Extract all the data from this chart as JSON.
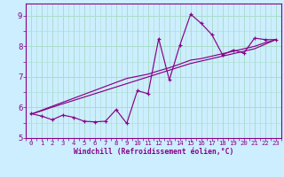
{
  "xlabel": "Windchill (Refroidissement éolien,°C)",
  "ylabel": "",
  "bg_color": "#cceeff",
  "line_color": "#880088",
  "grid_color": "#aaddcc",
  "xlim": [
    -0.5,
    23.5
  ],
  "ylim": [
    5.0,
    9.4
  ],
  "yticks": [
    5,
    6,
    7,
    8,
    9
  ],
  "xticks": [
    0,
    1,
    2,
    3,
    4,
    5,
    6,
    7,
    8,
    9,
    10,
    11,
    12,
    13,
    14,
    15,
    16,
    17,
    18,
    19,
    20,
    21,
    22,
    23
  ],
  "x_data": [
    0,
    1,
    2,
    3,
    4,
    5,
    6,
    7,
    8,
    9,
    10,
    11,
    12,
    13,
    14,
    15,
    16,
    17,
    18,
    19,
    20,
    21,
    22,
    23
  ],
  "y_main": [
    5.8,
    5.72,
    5.6,
    5.75,
    5.68,
    5.55,
    5.53,
    5.55,
    5.93,
    5.48,
    6.55,
    6.45,
    8.25,
    6.9,
    8.05,
    9.05,
    8.75,
    8.38,
    7.72,
    7.88,
    7.78,
    8.27,
    8.22,
    8.22
  ],
  "y_linear1": [
    5.78,
    5.89,
    6.01,
    6.12,
    6.23,
    6.34,
    6.45,
    6.56,
    6.67,
    6.78,
    6.89,
    7.0,
    7.11,
    7.22,
    7.33,
    7.44,
    7.52,
    7.6,
    7.68,
    7.76,
    7.84,
    7.92,
    8.07,
    8.22
  ],
  "y_linear2": [
    5.78,
    5.91,
    6.04,
    6.17,
    6.3,
    6.43,
    6.56,
    6.69,
    6.82,
    6.95,
    7.02,
    7.09,
    7.2,
    7.3,
    7.42,
    7.55,
    7.6,
    7.68,
    7.76,
    7.84,
    7.92,
    8.0,
    8.12,
    8.22
  ]
}
